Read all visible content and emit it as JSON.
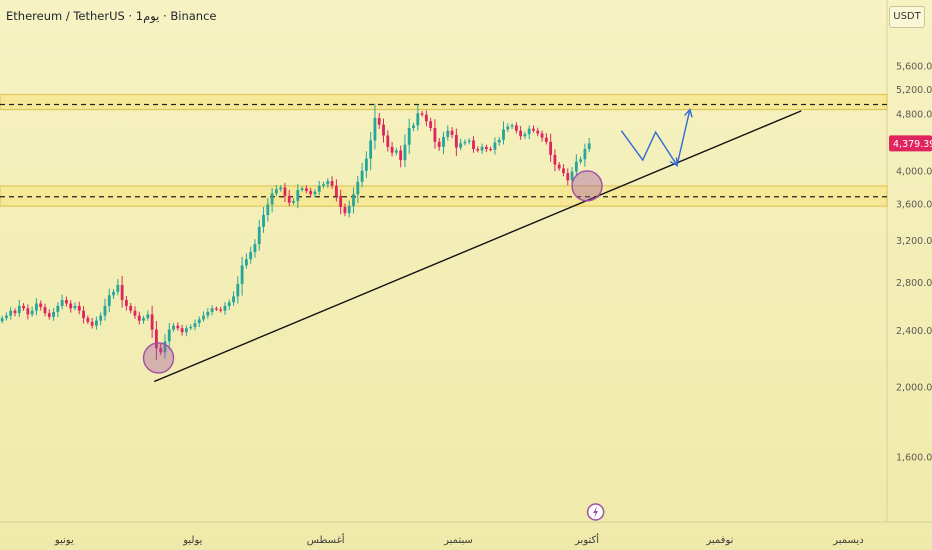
{
  "header": {
    "symbol_title": "Ethereum / TetherUS · 1يوم · Binance",
    "axis_unit": "USDT"
  },
  "colors": {
    "up": "#26a69a",
    "down": "#e0245e",
    "zone_fill": "#f7e27a",
    "zone_border": "#d8c24a",
    "trendline": "#111111",
    "projection": "#2f6bd6",
    "circle": "#a04fa6",
    "price_tag": "#e0245e"
  },
  "chart_data": {
    "type": "candlestick",
    "y_scale": "log",
    "ylim": [
      1300,
      6100
    ],
    "y_ticks": [
      {
        "value": 5600,
        "label": "5,600.00"
      },
      {
        "value": 5200,
        "label": "5,200.00"
      },
      {
        "value": 4800,
        "label": "4,800.00"
      },
      {
        "value": 4000,
        "label": "4,000.00"
      },
      {
        "value": 3600,
        "label": "3,600.00"
      },
      {
        "value": 3200,
        "label": "3,200.00"
      },
      {
        "value": 2800,
        "label": "2,800.00"
      },
      {
        "value": 2400,
        "label": "2,400.00"
      },
      {
        "value": 2000,
        "label": "2,000.00"
      },
      {
        "value": 1600,
        "label": "1,600.00"
      }
    ],
    "x_ticks": [
      {
        "date": "2025-06-01",
        "label": "يونيو"
      },
      {
        "date": "2025-07-01",
        "label": "يوليو"
      },
      {
        "date": "2025-08-01",
        "label": "أغسطس"
      },
      {
        "date": "2025-09-01",
        "label": "سبتمبر"
      },
      {
        "date": "2025-10-01",
        "label": "أكتوبر"
      },
      {
        "date": "2025-11-01",
        "label": "نوفمبر"
      },
      {
        "date": "2025-12-01",
        "label": "ديسمبر"
      }
    ],
    "x_range": [
      "2025-05-17",
      "2025-12-10"
    ],
    "last_price": {
      "value": 4379.39,
      "label": "4,379.39"
    },
    "closes": [
      2500,
      2520,
      2560,
      2540,
      2600,
      2580,
      2530,
      2560,
      2620,
      2590,
      2540,
      2510,
      2550,
      2600,
      2650,
      2620,
      2580,
      2600,
      2560,
      2500,
      2470,
      2440,
      2480,
      2520,
      2600,
      2690,
      2720,
      2780,
      2650,
      2600,
      2560,
      2520,
      2480,
      2500,
      2530,
      2410,
      2270,
      2240,
      2320,
      2410,
      2440,
      2420,
      2390,
      2420,
      2430,
      2460,
      2490,
      2520,
      2550,
      2580,
      2570,
      2560,
      2600,
      2630,
      2680,
      2790,
      2960,
      3020,
      3090,
      3170,
      3350,
      3480,
      3600,
      3730,
      3780,
      3800,
      3700,
      3620,
      3640,
      3770,
      3790,
      3760,
      3720,
      3750,
      3820,
      3840,
      3880,
      3820,
      3700,
      3570,
      3500,
      3580,
      3720,
      3870,
      4010,
      4170,
      4420,
      4750,
      4650,
      4490,
      4330,
      4250,
      4280,
      4150,
      4360,
      4600,
      4640,
      4820,
      4800,
      4700,
      4600,
      4400,
      4330,
      4470,
      4560,
      4500,
      4320,
      4380,
      4400,
      4420,
      4300,
      4280,
      4330,
      4300,
      4290,
      4390,
      4430,
      4580,
      4620,
      4640,
      4560,
      4480,
      4510,
      4590,
      4560,
      4520,
      4460,
      4400,
      4220,
      4090,
      4040,
      3980,
      3890,
      4000,
      4130,
      4160,
      4300,
      4379.39
    ],
    "resistance_zone": {
      "low": 4880,
      "high": 5120,
      "mid": 4960
    },
    "support_zone": {
      "low": 3580,
      "high": 3820,
      "mid": 3690
    },
    "trendline": {
      "start": {
        "date": "2025-06-22",
        "price": 2040
      },
      "end": {
        "date": "2025-11-20",
        "price": 4860
      }
    },
    "projection": [
      {
        "date": "2025-10-09",
        "price": 4560
      },
      {
        "date": "2025-10-14",
        "price": 4150
      },
      {
        "date": "2025-10-17",
        "price": 4540
      },
      {
        "date": "2025-10-22",
        "price": 4080
      },
      {
        "date": "2025-10-25",
        "price": 4880
      }
    ],
    "markers": [
      {
        "date": "2025-06-23",
        "price": 2200
      },
      {
        "date": "2025-10-01",
        "price": 3820
      }
    ]
  }
}
